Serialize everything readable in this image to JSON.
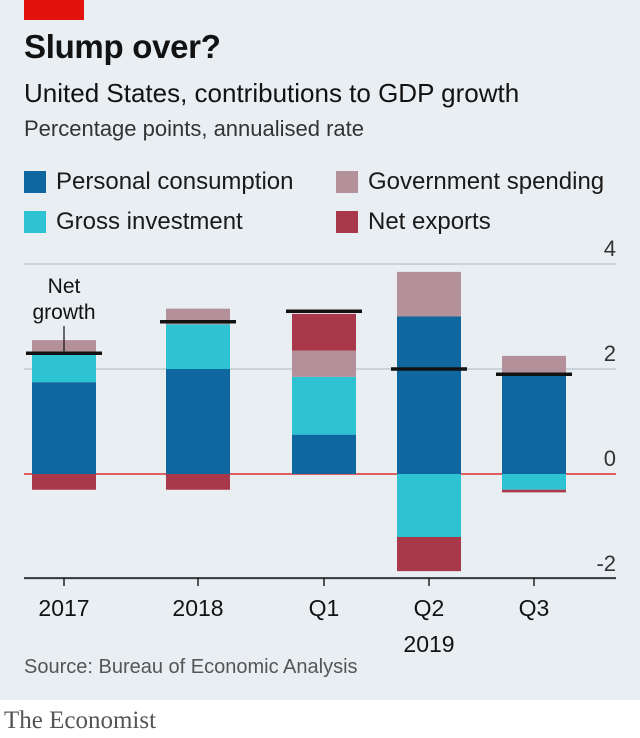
{
  "header": {
    "title": "Slump over?",
    "subtitle": "United States, contributions to GDP growth",
    "unit": "Percentage points, annualised rate"
  },
  "legend": [
    {
      "label": "Personal consumption",
      "color": "#0f67a0"
    },
    {
      "label": "Government spending",
      "color": "#b4919a"
    },
    {
      "label": "Gross investment",
      "color": "#2ec3d3"
    },
    {
      "label": "Net exports",
      "color": "#a8384a"
    }
  ],
  "source": "Source: Bureau of Economic Analysis",
  "brand": "The Economist",
  "chart_data": {
    "type": "bar",
    "stacked": true,
    "categories": [
      "2017",
      "2018",
      "Q1",
      "Q2",
      "Q3"
    ],
    "group_label": "2019",
    "series": [
      {
        "name": "Personal consumption",
        "color": "#0f67a0",
        "values": [
          1.75,
          2.0,
          0.75,
          3.0,
          1.9
        ]
      },
      {
        "name": "Gross investment",
        "color": "#2ec3d3",
        "values": [
          0.55,
          0.85,
          1.1,
          -1.2,
          -0.3
        ]
      },
      {
        "name": "Government spending",
        "color": "#b4919a",
        "values": [
          0.25,
          0.3,
          0.5,
          0.85,
          0.35
        ]
      },
      {
        "name": "Net exports",
        "color": "#a8384a",
        "values": [
          -0.3,
          -0.3,
          0.7,
          -0.65,
          -0.05
        ]
      }
    ],
    "net_growth": [
      2.3,
      2.9,
      3.1,
      2.0,
      1.9
    ],
    "annotation": "Net growth",
    "ylim": [
      -2,
      4
    ],
    "yticks": [
      "4",
      "2",
      "0",
      "-2"
    ],
    "ytick_values": [
      4,
      2,
      0,
      -2
    ],
    "grid": true
  }
}
